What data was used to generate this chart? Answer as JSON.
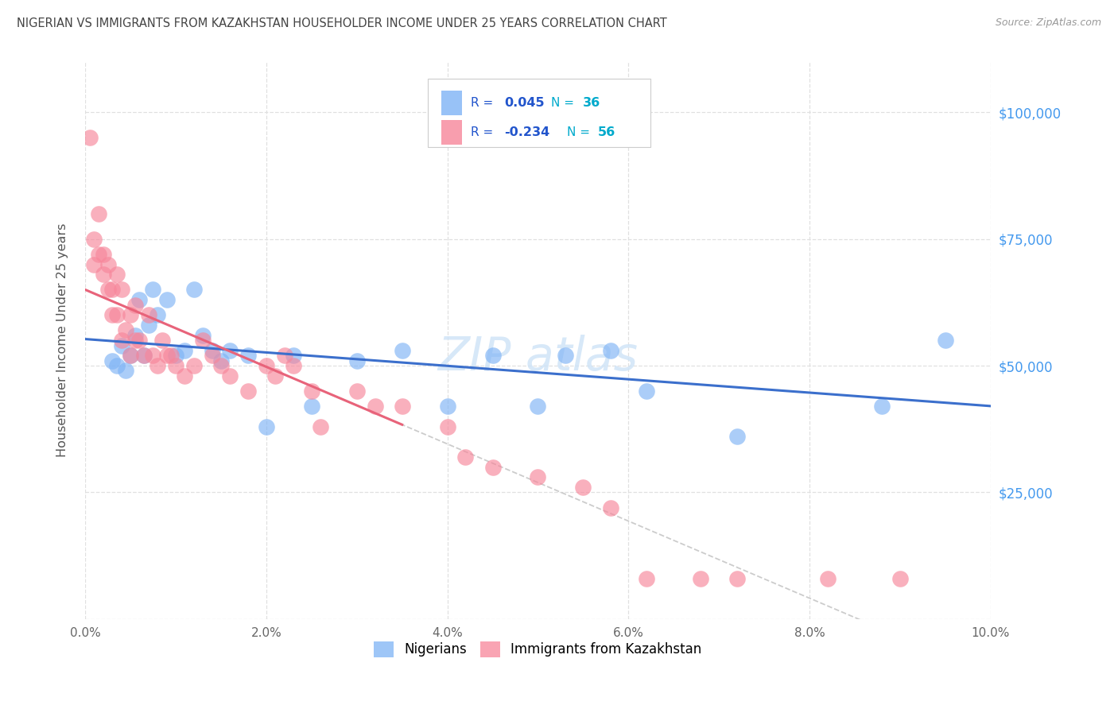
{
  "title": "NIGERIAN VS IMMIGRANTS FROM KAZAKHSTAN HOUSEHOLDER INCOME UNDER 25 YEARS CORRELATION CHART",
  "source": "Source: ZipAtlas.com",
  "ylabel": "Householder Income Under 25 years",
  "blue_color": "#7eb3f5",
  "pink_color": "#f7869a",
  "blue_line_color": "#3b6fcc",
  "pink_line_color": "#e8637a",
  "dashed_line_color": "#cccccc",
  "legend_r_color": "#2255cc",
  "legend_n_color": "#00aacc",
  "title_color": "#444444",
  "right_label_color": "#4499ee",
  "watermark_color": "#d0e4f7",
  "nigerians_x": [
    0.3,
    0.35,
    0.4,
    0.45,
    0.5,
    0.55,
    0.6,
    0.65,
    0.7,
    0.75,
    0.8,
    0.9,
    1.0,
    1.1,
    1.2,
    1.3,
    1.4,
    1.5,
    1.6,
    1.8,
    2.0,
    2.3,
    2.5,
    3.0,
    3.5,
    4.0,
    4.5,
    5.0,
    5.3,
    5.8,
    6.2,
    7.2,
    8.8,
    9.5
  ],
  "nigerians_y": [
    51000,
    50000,
    54000,
    49000,
    52000,
    56000,
    63000,
    52000,
    58000,
    65000,
    60000,
    63000,
    52000,
    53000,
    65000,
    56000,
    53000,
    51000,
    53000,
    52000,
    38000,
    52000,
    42000,
    51000,
    53000,
    42000,
    52000,
    42000,
    52000,
    53000,
    45000,
    36000,
    42000,
    55000
  ],
  "kazakhstan_x": [
    0.05,
    0.1,
    0.1,
    0.15,
    0.15,
    0.2,
    0.2,
    0.25,
    0.25,
    0.3,
    0.3,
    0.35,
    0.35,
    0.4,
    0.4,
    0.45,
    0.5,
    0.5,
    0.55,
    0.55,
    0.6,
    0.65,
    0.7,
    0.75,
    0.8,
    0.85,
    0.9,
    0.95,
    1.0,
    1.1,
    1.2,
    1.3,
    1.4,
    1.5,
    1.6,
    1.8,
    2.0,
    2.1,
    2.2,
    2.3,
    2.5,
    2.6,
    3.0,
    3.2,
    3.5,
    4.0,
    4.2,
    4.5,
    5.0,
    5.5,
    5.8,
    6.2,
    6.8,
    7.2,
    8.2,
    9.0
  ],
  "kazakhstan_y": [
    95000,
    70000,
    75000,
    80000,
    72000,
    72000,
    68000,
    65000,
    70000,
    65000,
    60000,
    68000,
    60000,
    65000,
    55000,
    57000,
    60000,
    52000,
    62000,
    55000,
    55000,
    52000,
    60000,
    52000,
    50000,
    55000,
    52000,
    52000,
    50000,
    48000,
    50000,
    55000,
    52000,
    50000,
    48000,
    45000,
    50000,
    48000,
    52000,
    50000,
    45000,
    38000,
    45000,
    42000,
    42000,
    38000,
    32000,
    30000,
    28000,
    26000,
    22000,
    8000,
    8000,
    8000,
    8000,
    8000
  ]
}
